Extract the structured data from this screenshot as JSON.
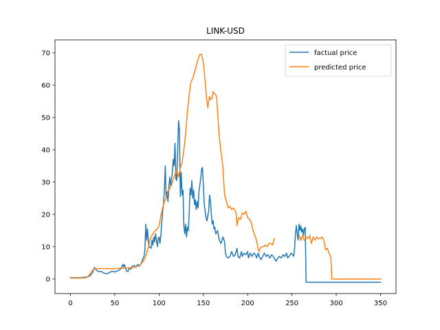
{
  "chart_data": {
    "type": "line",
    "title": "LINK-USD",
    "xlabel": "",
    "ylabel": "",
    "xlim": [
      -17.5,
      367.5
    ],
    "ylim": [
      -4.5,
      74
    ],
    "xticks": [
      0,
      50,
      100,
      150,
      200,
      250,
      300,
      350
    ],
    "yticks": [
      0,
      10,
      20,
      30,
      40,
      50,
      60,
      70
    ],
    "legend": {
      "position": "top-right"
    },
    "grid": false,
    "series": [
      {
        "name": "factual price",
        "color": "#1f77b4",
        "points": [
          [
            0,
            0.4
          ],
          [
            10,
            0.4
          ],
          [
            18,
            0.6
          ],
          [
            22,
            1.0
          ],
          [
            25,
            2.0
          ],
          [
            27,
            3.6
          ],
          [
            29,
            2.8
          ],
          [
            31,
            2.4
          ],
          [
            35,
            2.3
          ],
          [
            38,
            1.8
          ],
          [
            41,
            1.6
          ],
          [
            44,
            2.0
          ],
          [
            47,
            2.4
          ],
          [
            50,
            2.2
          ],
          [
            53,
            2.5
          ],
          [
            56,
            2.9
          ],
          [
            58,
            3.7
          ],
          [
            59,
            4.6
          ],
          [
            60,
            3.8
          ],
          [
            61,
            4.4
          ],
          [
            62,
            3.5
          ],
          [
            63,
            2.5
          ],
          [
            65,
            2.3
          ],
          [
            66,
            3.5
          ],
          [
            68,
            3.0
          ],
          [
            70,
            4.0
          ],
          [
            72,
            4.2
          ],
          [
            74,
            3.7
          ],
          [
            76,
            4.5
          ],
          [
            78,
            4.0
          ],
          [
            80,
            5.0
          ],
          [
            82,
            6.5
          ],
          [
            83,
            7.0
          ],
          [
            84,
            9.0
          ],
          [
            85,
            17.0
          ],
          [
            86,
            12.0
          ],
          [
            87,
            15.5
          ],
          [
            88,
            11.0
          ],
          [
            89,
            10.0
          ],
          [
            91,
            9.5
          ],
          [
            92,
            12.0
          ],
          [
            93,
            10.5
          ],
          [
            94,
            13.0
          ],
          [
            95,
            11.5
          ],
          [
            96,
            14.0
          ],
          [
            97,
            12.0
          ],
          [
            98,
            10.0
          ],
          [
            99,
            12.5
          ],
          [
            100,
            13.0
          ],
          [
            101,
            11.0
          ],
          [
            102,
            13.5
          ],
          [
            104,
            21.0
          ],
          [
            105,
            23.0
          ],
          [
            106,
            28.0
          ],
          [
            107,
            35.0
          ],
          [
            108,
            25.0
          ],
          [
            109,
            27.0
          ],
          [
            110,
            24.0
          ],
          [
            111,
            28.0
          ],
          [
            112,
            31.5
          ],
          [
            113,
            29.0
          ],
          [
            115,
            33.0
          ],
          [
            116,
            37.0
          ],
          [
            117,
            35.0
          ],
          [
            118,
            42.0
          ],
          [
            119,
            31.0
          ],
          [
            120,
            30.5
          ],
          [
            121,
            40.0
          ],
          [
            122,
            49.0
          ],
          [
            123,
            46.0
          ],
          [
            124,
            25.5
          ],
          [
            125,
            33.0
          ],
          [
            126,
            26.0
          ],
          [
            127,
            27.5
          ],
          [
            128,
            16.5
          ],
          [
            129,
            14.0
          ],
          [
            130,
            17.0
          ],
          [
            131,
            13.0
          ],
          [
            132,
            16.0
          ],
          [
            133,
            15.0
          ],
          [
            134,
            20.0
          ],
          [
            135,
            28.0
          ],
          [
            136,
            26.0
          ],
          [
            137,
            30.5
          ],
          [
            138,
            25.0
          ],
          [
            139,
            27.5
          ],
          [
            140,
            23.0
          ],
          [
            141,
            24.5
          ],
          [
            142,
            21.5
          ],
          [
            143,
            24.0
          ],
          [
            144,
            22.0
          ],
          [
            145,
            27.0
          ],
          [
            146,
            29.0
          ],
          [
            147,
            31.0
          ],
          [
            148,
            34.0
          ],
          [
            149,
            34.5
          ],
          [
            150,
            29.0
          ],
          [
            151,
            23.0
          ],
          [
            152,
            21.0
          ],
          [
            153,
            19.0
          ],
          [
            154,
            18.0
          ],
          [
            155,
            19.5
          ],
          [
            156,
            21.0
          ],
          [
            157,
            26.0
          ],
          [
            158,
            24.0
          ],
          [
            159,
            20.0
          ],
          [
            160,
            17.0
          ],
          [
            161,
            18.0
          ],
          [
            162,
            15.5
          ],
          [
            163,
            16.0
          ],
          [
            164,
            14.0
          ],
          [
            166,
            15.0
          ],
          [
            168,
            12.0
          ],
          [
            170,
            11.0
          ],
          [
            172,
            13.0
          ],
          [
            174,
            11.5
          ],
          [
            175,
            8.0
          ],
          [
            176,
            7.0
          ],
          [
            178,
            6.5
          ],
          [
            180,
            7.0
          ],
          [
            182,
            8.5
          ],
          [
            184,
            7.0
          ],
          [
            186,
            7.5
          ],
          [
            188,
            9.5
          ],
          [
            189,
            7.0
          ],
          [
            191,
            6.5
          ],
          [
            192,
            7.5
          ],
          [
            193,
            8.5
          ],
          [
            194,
            7.0
          ],
          [
            196,
            8.0
          ],
          [
            198,
            7.5
          ],
          [
            200,
            8.5
          ],
          [
            201,
            6.5
          ],
          [
            203,
            8.0
          ],
          [
            205,
            7.0
          ],
          [
            207,
            8.0
          ],
          [
            209,
            7.5
          ],
          [
            210,
            6.5
          ],
          [
            212,
            8.0
          ],
          [
            213,
            7.0
          ],
          [
            215,
            6.0
          ],
          [
            217,
            7.0
          ],
          [
            219,
            8.0
          ],
          [
            221,
            7.0
          ],
          [
            223,
            7.5
          ],
          [
            225,
            6.5
          ],
          [
            227,
            7.5
          ],
          [
            229,
            7.0
          ],
          [
            231,
            6.0
          ],
          [
            232,
            5.5
          ],
          [
            234,
            6.5
          ],
          [
            236,
            7.0
          ],
          [
            238,
            6.5
          ],
          [
            240,
            7.5
          ],
          [
            242,
            7.0
          ],
          [
            244,
            8.0
          ],
          [
            245,
            6.5
          ],
          [
            247,
            7.0
          ],
          [
            249,
            8.0
          ],
          [
            251,
            7.5
          ],
          [
            252,
            7.0
          ],
          [
            253,
            9.5
          ],
          [
            254,
            14.0
          ],
          [
            255,
            16.5
          ],
          [
            256,
            14.0
          ],
          [
            257,
            12.0
          ],
          [
            258,
            17.0
          ],
          [
            259,
            15.0
          ],
          [
            260,
            16.5
          ],
          [
            261,
            14.5
          ],
          [
            262,
            15.5
          ],
          [
            263,
            13.5
          ],
          [
            264,
            15.5
          ],
          [
            265,
            16.0
          ],
          [
            266,
            -1.0
          ],
          [
            350,
            -1.0
          ]
        ]
      },
      {
        "name": "predicted price",
        "color": "#ff7f0e",
        "points": [
          [
            0,
            0.3
          ],
          [
            10,
            0.3
          ],
          [
            18,
            0.4
          ],
          [
            22,
            1.5
          ],
          [
            24,
            2.5
          ],
          [
            27,
            3.2
          ],
          [
            30,
            3.2
          ],
          [
            34,
            3.3
          ],
          [
            38,
            3.2
          ],
          [
            42,
            3.3
          ],
          [
            46,
            3.2
          ],
          [
            50,
            3.2
          ],
          [
            54,
            3.3
          ],
          [
            58,
            3.3
          ],
          [
            62,
            3.4
          ],
          [
            66,
            3.4
          ],
          [
            70,
            3.5
          ],
          [
            74,
            3.8
          ],
          [
            78,
            4.2
          ],
          [
            82,
            5.5
          ],
          [
            84,
            6.5
          ],
          [
            86,
            8.0
          ],
          [
            88,
            10.0
          ],
          [
            90,
            12.5
          ],
          [
            92,
            13.5
          ],
          [
            94,
            14.5
          ],
          [
            96,
            15.0
          ],
          [
            98,
            15.5
          ],
          [
            100,
            16.5
          ],
          [
            102,
            19.5
          ],
          [
            104,
            22.0
          ],
          [
            106,
            24.0
          ],
          [
            108,
            25.0
          ],
          [
            110,
            27.0
          ],
          [
            112,
            28.0
          ],
          [
            114,
            29.0
          ],
          [
            116,
            31.0
          ],
          [
            118,
            32.5
          ],
          [
            120,
            33.5
          ],
          [
            122,
            31.5
          ],
          [
            124,
            34.5
          ],
          [
            126,
            36.0
          ],
          [
            128,
            40.0
          ],
          [
            130,
            45.0
          ],
          [
            132,
            52.0
          ],
          [
            134,
            57.0
          ],
          [
            136,
            61.0
          ],
          [
            138,
            62.0
          ],
          [
            140,
            64.0
          ],
          [
            142,
            66.0
          ],
          [
            144,
            68.0
          ],
          [
            146,
            69.5
          ],
          [
            148,
            69.5
          ],
          [
            150,
            67.0
          ],
          [
            152,
            61.0
          ],
          [
            154,
            55.0
          ],
          [
            155,
            53.0
          ],
          [
            156,
            55.0
          ],
          [
            157,
            56.5
          ],
          [
            158,
            55.5
          ],
          [
            160,
            56.0
          ],
          [
            161,
            58.0
          ],
          [
            162,
            57.5
          ],
          [
            164,
            57.0
          ],
          [
            165,
            56.0
          ],
          [
            166,
            52.0
          ],
          [
            168,
            44.0
          ],
          [
            170,
            39.0
          ],
          [
            172,
            35.0
          ],
          [
            173,
            30.0
          ],
          [
            174,
            26.0
          ],
          [
            176,
            24.0
          ],
          [
            178,
            22.0
          ],
          [
            180,
            22.5
          ],
          [
            182,
            21.5
          ],
          [
            184,
            22.0
          ],
          [
            186,
            21.0
          ],
          [
            187,
            20.5
          ],
          [
            188,
            16.5
          ],
          [
            189,
            18.0
          ],
          [
            190,
            19.0
          ],
          [
            192,
            18.5
          ],
          [
            194,
            20.5
          ],
          [
            196,
            20.0
          ],
          [
            198,
            21.0
          ],
          [
            200,
            19.0
          ],
          [
            202,
            18.5
          ],
          [
            204,
            17.5
          ],
          [
            206,
            15.0
          ],
          [
            208,
            13.5
          ],
          [
            210,
            12.0
          ],
          [
            212,
            9.0
          ],
          [
            213,
            8.5
          ],
          [
            214,
            9.5
          ],
          [
            216,
            10.0
          ],
          [
            218,
            10.0
          ],
          [
            220,
            10.5
          ],
          [
            222,
            10.0
          ],
          [
            224,
            11.0
          ],
          [
            226,
            11.0
          ],
          [
            228,
            10.5
          ],
          [
            229,
            11.5
          ],
          [
            230,
            12.5
          ],
          [
            null,
            null
          ],
          [
            258,
            13.5
          ],
          [
            260,
            12.0
          ],
          [
            262,
            13.5
          ],
          [
            264,
            12.0
          ],
          [
            266,
            13.0
          ],
          [
            268,
            12.5
          ],
          [
            270,
            13.5
          ],
          [
            272,
            11.0
          ],
          [
            274,
            13.0
          ],
          [
            276,
            12.0
          ],
          [
            278,
            13.0
          ],
          [
            280,
            12.5
          ],
          [
            282,
            12.5
          ],
          [
            284,
            13.0
          ],
          [
            286,
            12.0
          ],
          [
            288,
            9.0
          ],
          [
            290,
            9.5
          ],
          [
            292,
            8.0
          ],
          [
            294,
            6.5
          ],
          [
            295,
            0.0
          ],
          [
            350,
            0.0
          ]
        ]
      }
    ]
  }
}
